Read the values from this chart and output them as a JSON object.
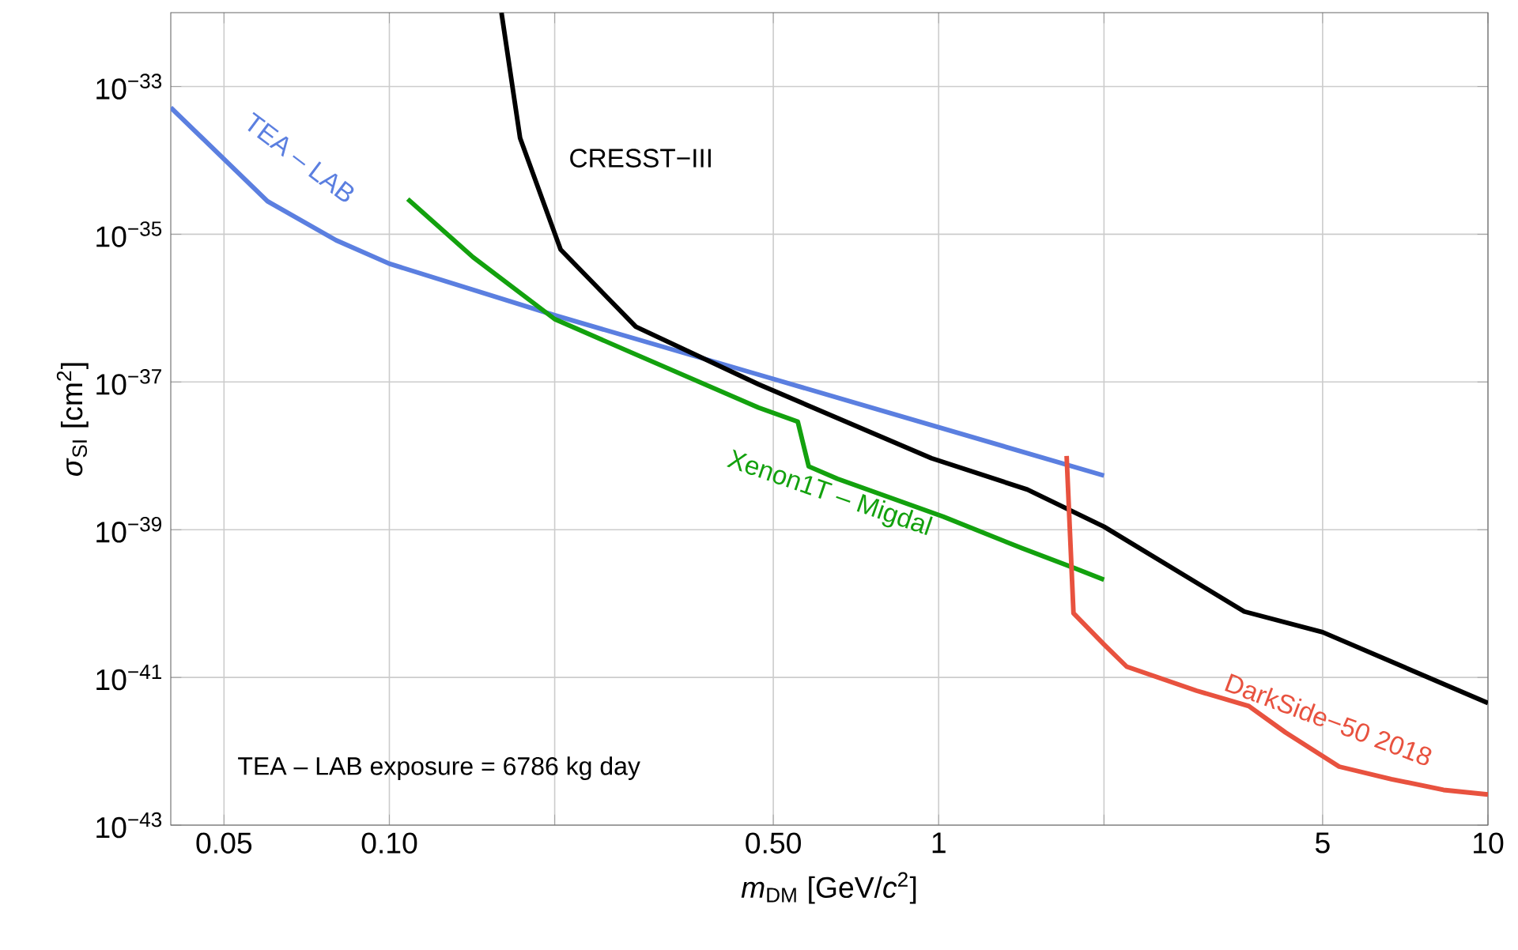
{
  "chart_data": {
    "type": "line",
    "xlabel": "*m*$_{DM}$ [GeV/*c*$^{2}$]",
    "ylabel": "*σ*$_{SI}$ [cm$^{2}$]",
    "log": "xy",
    "grid": true,
    "marker": "none",
    "line_style": "solid",
    "xlim": [
      0.04,
      10
    ],
    "ylim": [
      1e-43,
      1e-32
    ],
    "xticks": [
      {
        "value": 0.05,
        "label": "0.05"
      },
      {
        "value": 0.1,
        "label": "0.10"
      },
      {
        "value": 0.2,
        "label": null
      },
      {
        "value": 0.5,
        "label": "0.50"
      },
      1,
      {
        "value": 2,
        "label": null
      },
      5,
      10
    ],
    "yticks": [
      {
        "value": 1e-43,
        "label": "10$^{−43}$"
      },
      {
        "value": 1e-41,
        "label": "10$^{−41}$"
      },
      {
        "value": 1e-39,
        "label": "10$^{−39}$"
      },
      {
        "value": 1e-37,
        "label": "10$^{−37}$"
      },
      {
        "value": 1e-35,
        "label": "10$^{−35}$"
      },
      {
        "value": 1e-33,
        "label": "10$^{−33}$"
      }
    ],
    "series": [
      {
        "name": "TEA – LAB",
        "color": "#5b7fe0",
        "x": [
          0.04,
          0.06,
          0.08,
          0.1,
          0.2,
          0.47,
          2
        ],
        "values": [
          5.2e-34,
          2.8e-35,
          8.3e-36,
          4e-36,
          8e-37,
          1.26e-37,
          5.4e-39
        ]
      },
      {
        "name": "CRESST−III",
        "color": "#000000",
        "x": [
          0.16,
          0.173,
          0.205,
          0.281,
          0.47,
          0.97,
          1.45,
          2,
          3.6,
          5,
          10
        ],
        "values": [
          1e-32,
          2e-34,
          6.2e-36,
          5.6e-37,
          9.3e-38,
          9.3e-39,
          3.5e-39,
          1.1e-39,
          7.8e-41,
          4.1e-41,
          4.5e-42
        ]
      },
      {
        "name": "Xenon1T – Migdal",
        "color": "#13a10e",
        "x": [
          0.108,
          0.142,
          0.2,
          0.276,
          0.47,
          0.554,
          0.58,
          0.654,
          1.02,
          1.42,
          1.77,
          2
        ],
        "values": [
          3e-35,
          4.9e-36,
          7.1e-37,
          2.5e-37,
          4.5e-38,
          2.9e-38,
          7.2e-39,
          4.9e-39,
          1.5e-39,
          5.6e-40,
          3e-40,
          2.1e-40
        ]
      },
      {
        "name": "DarkSide−50 2018",
        "color": "#e8523f",
        "x": [
          1.71,
          1.76,
          2,
          2.2,
          2.95,
          3.67,
          4.28,
          5.36,
          6.67,
          8.3,
          10
        ],
        "values": [
          1e-38,
          7.4e-41,
          2.8e-41,
          1.4e-41,
          6.6e-42,
          4.1e-42,
          1.8e-42,
          6.2e-43,
          4.2e-43,
          3e-43,
          2.6e-43
        ]
      }
    ],
    "annotations": [
      "TEA – LAB exposure = 6786 kg day"
    ]
  }
}
